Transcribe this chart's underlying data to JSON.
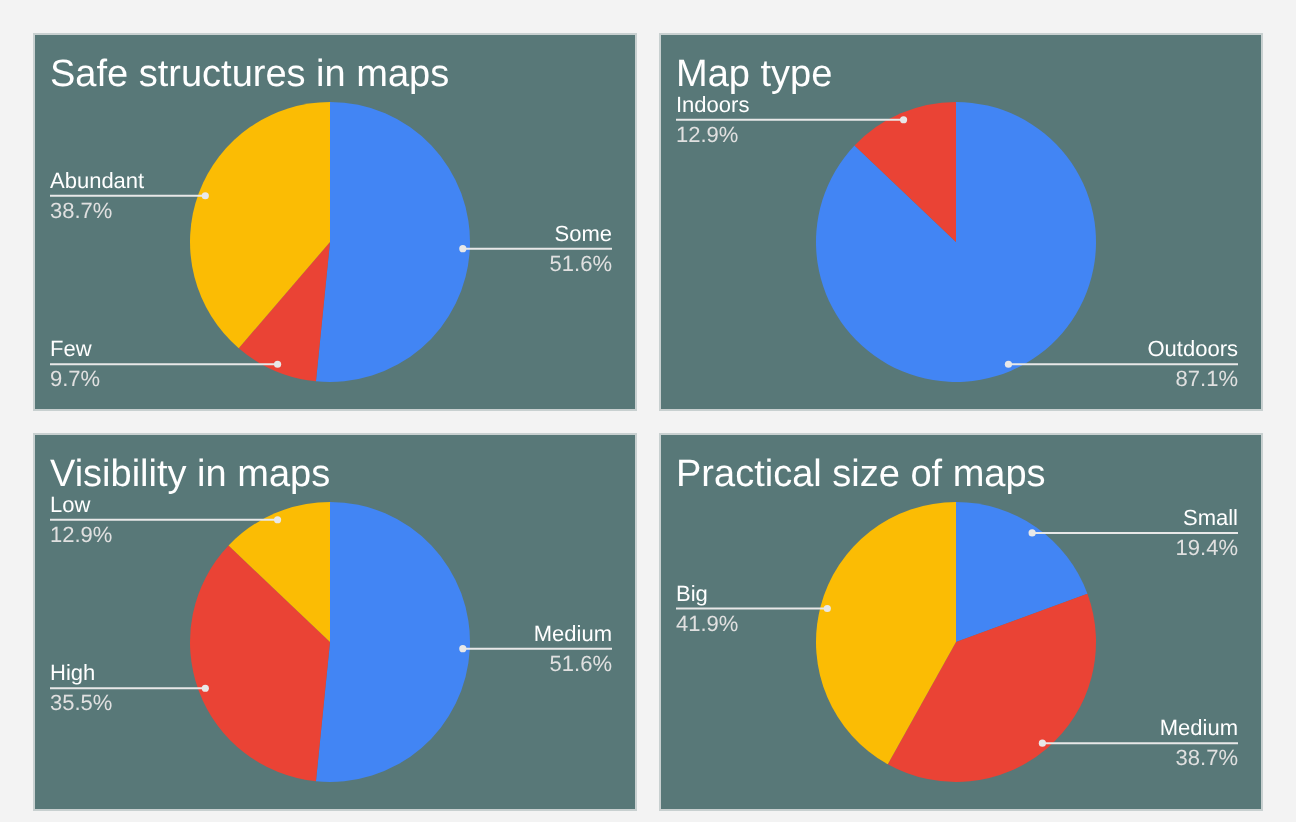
{
  "chart_data": [
    {
      "type": "pie",
      "title": "Safe structures in maps",
      "categories": [
        "Some",
        "Few",
        "Abundant"
      ],
      "values": [
        51.6,
        9.7,
        38.7
      ],
      "value_labels": [
        "51.6%",
        "9.7%",
        "38.7%"
      ],
      "colors": [
        "#4285f4",
        "#ea4335",
        "#fbbc04"
      ]
    },
    {
      "type": "pie",
      "title": "Map type",
      "categories": [
        "Outdoors",
        "Indoors"
      ],
      "values": [
        87.1,
        12.9
      ],
      "value_labels": [
        "87.1%",
        "12.9%"
      ],
      "colors": [
        "#4285f4",
        "#ea4335"
      ]
    },
    {
      "type": "pie",
      "title": "Visibility in maps",
      "categories": [
        "Medium",
        "High",
        "Low"
      ],
      "values": [
        51.6,
        35.5,
        12.9
      ],
      "value_labels": [
        "51.6%",
        "35.5%",
        "12.9%"
      ],
      "colors": [
        "#4285f4",
        "#ea4335",
        "#fbbc04"
      ]
    },
    {
      "type": "pie",
      "title": "Practical size of maps",
      "categories": [
        "Small",
        "Medium",
        "Big"
      ],
      "values": [
        19.4,
        38.7,
        41.9
      ],
      "value_labels": [
        "19.4%",
        "38.7%",
        "41.9%"
      ],
      "colors": [
        "#4285f4",
        "#ea4335",
        "#fbbc04"
      ]
    }
  ]
}
